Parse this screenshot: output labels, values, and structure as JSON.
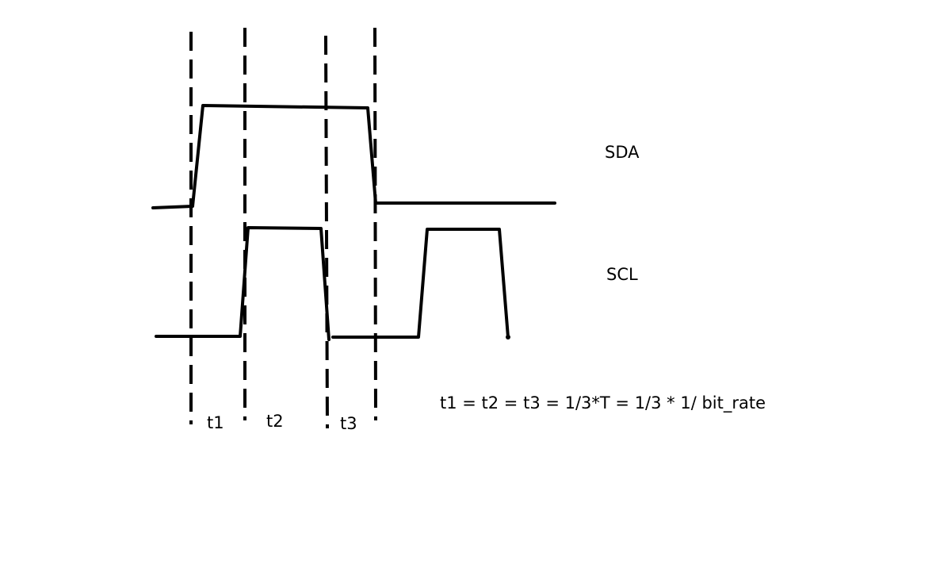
{
  "signals": {
    "sda_label": "SDA",
    "scl_label": "SCL"
  },
  "intervals": {
    "t1": "t1",
    "t2": "t2",
    "t3": "t3"
  },
  "formula": "t1 = t2 = t3 = 1/3*T = 1/3 * 1/ bit_rate",
  "colors": {
    "ink": "#000000",
    "background": "#ffffff"
  }
}
